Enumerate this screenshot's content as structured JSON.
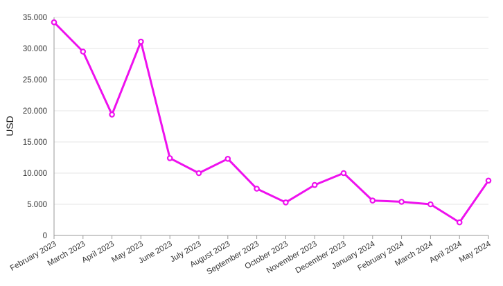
{
  "chart_data": {
    "type": "line",
    "ylabel": "USD",
    "xlabel": "",
    "categories": [
      "February 2023",
      "March 2023",
      "April 2023",
      "May 2023",
      "June 2023",
      "July 2023",
      "August 2023",
      "September 2023",
      "October 2023",
      "November 2023",
      "December 2023",
      "January 2024",
      "February 2024",
      "March 2024",
      "April 2024",
      "May 2024"
    ],
    "series": [
      {
        "values": [
          34200,
          29500,
          19400,
          31100,
          12400,
          10000,
          12300,
          7500,
          5300,
          8100,
          10000,
          5600,
          5400,
          5000,
          2100,
          8800
        ]
      }
    ],
    "ylim": [
      0,
      35000
    ],
    "yticks": [
      0,
      5000,
      10000,
      15000,
      20000,
      25000,
      30000,
      35000
    ],
    "ytick_labels": [
      "0",
      "5.000",
      "10.000",
      "15.000",
      "20.000",
      "25.000",
      "30.000",
      "35.000"
    ],
    "grid": true,
    "line_color": "#ee11ee"
  }
}
